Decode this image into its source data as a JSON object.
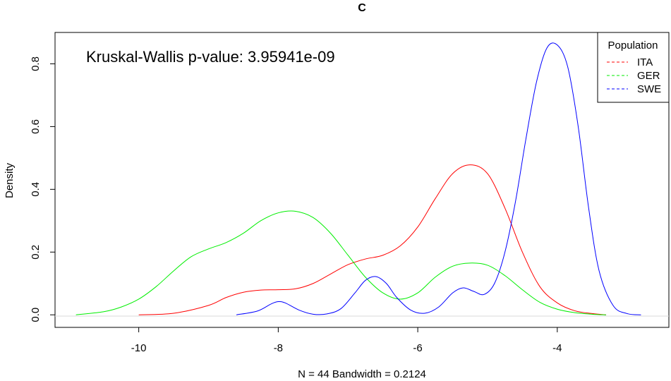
{
  "chart_data": {
    "type": "line",
    "title": "C",
    "xlabel": "N = 44   Bandwidth = 0.2124",
    "ylabel": "Density",
    "annotation": "Kruskal-Wallis p-value: 3.95941e-09",
    "xlim": [
      -11.2,
      -2.4
    ],
    "ylim": [
      -0.04,
      0.9
    ],
    "x_ticks": [
      -10,
      -8,
      -6,
      -4
    ],
    "y_ticks": [
      0.0,
      0.2,
      0.4,
      0.6,
      0.8
    ],
    "x_tick_labels": [
      "-10",
      "-8",
      "-6",
      "-4"
    ],
    "y_tick_labels": [
      "0.0",
      "0.2",
      "0.4",
      "0.6",
      "0.8"
    ],
    "legend": {
      "title": "Population",
      "position": "top-right",
      "entries": [
        "ITA",
        "GER",
        "SWE"
      ]
    },
    "series": [
      {
        "name": "ITA",
        "color": "#ff0000",
        "x": [
          -10.0,
          -9.5,
          -9.0,
          -8.75,
          -8.5,
          -8.25,
          -8.0,
          -7.75,
          -7.5,
          -7.25,
          -7.0,
          -6.75,
          -6.5,
          -6.25,
          -6.0,
          -5.75,
          -5.5,
          -5.25,
          -5.0,
          -4.75,
          -4.5,
          -4.25,
          -4.0,
          -3.75,
          -3.5,
          -3.3
        ],
        "values": [
          0.0,
          0.005,
          0.03,
          0.055,
          0.072,
          0.079,
          0.08,
          0.083,
          0.1,
          0.13,
          0.16,
          0.178,
          0.19,
          0.22,
          0.28,
          0.37,
          0.45,
          0.478,
          0.45,
          0.34,
          0.2,
          0.09,
          0.038,
          0.013,
          0.004,
          0.0
        ]
      },
      {
        "name": "GER",
        "color": "#00ee00",
        "x": [
          -10.9,
          -10.5,
          -10.25,
          -10.0,
          -9.75,
          -9.5,
          -9.25,
          -9.0,
          -8.75,
          -8.5,
          -8.25,
          -8.0,
          -7.75,
          -7.5,
          -7.25,
          -7.0,
          -6.75,
          -6.5,
          -6.25,
          -6.0,
          -5.75,
          -5.5,
          -5.25,
          -5.0,
          -4.75,
          -4.5,
          -4.25,
          -4.0,
          -3.75,
          -3.5,
          -3.3
        ],
        "values": [
          0.0,
          0.01,
          0.025,
          0.05,
          0.09,
          0.14,
          0.185,
          0.21,
          0.23,
          0.26,
          0.3,
          0.325,
          0.33,
          0.31,
          0.26,
          0.19,
          0.12,
          0.07,
          0.05,
          0.07,
          0.12,
          0.155,
          0.165,
          0.158,
          0.125,
          0.08,
          0.04,
          0.018,
          0.007,
          0.002,
          0.0
        ]
      },
      {
        "name": "SWE",
        "color": "#0000ff",
        "x": [
          -8.6,
          -8.3,
          -8.1,
          -8.0,
          -7.9,
          -7.7,
          -7.5,
          -7.3,
          -7.1,
          -6.9,
          -6.75,
          -6.6,
          -6.45,
          -6.3,
          -6.1,
          -5.9,
          -5.7,
          -5.5,
          -5.35,
          -5.2,
          -5.05,
          -4.9,
          -4.75,
          -4.6,
          -4.45,
          -4.3,
          -4.15,
          -4.0,
          -3.85,
          -3.7,
          -3.55,
          -3.4,
          -3.2,
          -3.0,
          -2.8
        ],
        "values": [
          0.0,
          0.012,
          0.035,
          0.042,
          0.038,
          0.015,
          0.002,
          0.003,
          0.02,
          0.07,
          0.11,
          0.122,
          0.1,
          0.055,
          0.015,
          0.005,
          0.025,
          0.07,
          0.086,
          0.075,
          0.065,
          0.1,
          0.2,
          0.36,
          0.56,
          0.74,
          0.85,
          0.86,
          0.79,
          0.6,
          0.34,
          0.14,
          0.03,
          0.004,
          0.0
        ]
      }
    ],
    "grid": false,
    "baseline_at_zero": true
  }
}
